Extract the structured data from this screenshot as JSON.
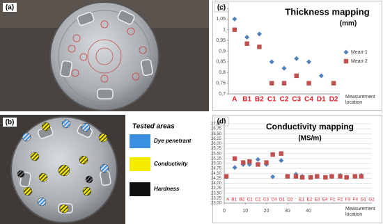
{
  "panels": {
    "a": "(a)",
    "b": "(b)",
    "c": "(c)",
    "d": "(d)"
  },
  "legend_b": {
    "title": "Tested areas",
    "items": [
      "Dye penetrant",
      "Conductivity",
      "Hardness"
    ]
  },
  "chart_data": [
    {
      "type": "scatter",
      "title": "Thickness mapping",
      "subtitle": "(mm)",
      "x_label": "Measurement location",
      "categories": [
        "A",
        "B1",
        "B2",
        "C1",
        "C2",
        "C3",
        "C4",
        "D1",
        "D2"
      ],
      "category_color": "#e0202a",
      "series": [
        {
          "name": "Mean-1",
          "color": "#4f81bd",
          "marker": "diamond",
          "values": [
            1.05,
            0.965,
            0.98,
            0.85,
            0.82,
            0.865,
            0.85,
            0.785,
            null
          ]
        },
        {
          "name": "Mean-2",
          "color": "#c0504d",
          "marker": "square",
          "values": [
            1.0,
            0.935,
            0.92,
            0.75,
            0.75,
            0.785,
            0.75,
            null,
            0.75
          ]
        }
      ],
      "ylim": [
        0.7,
        1.1
      ],
      "yticks": [
        {
          "value": 0.7,
          "label": "0,7"
        },
        {
          "value": 0.75,
          "label": "0,75"
        },
        {
          "value": 0.8,
          "label": "0,8"
        },
        {
          "value": 0.85,
          "label": "0,85"
        },
        {
          "value": 0.9,
          "label": "0,9"
        },
        {
          "value": 0.95,
          "label": "0,95"
        },
        1,
        {
          "value": 1.05,
          "label": "1,05"
        },
        {
          "value": 1.1,
          "label": "1,1"
        }
      ],
      "grid": false,
      "legend": "right"
    },
    {
      "type": "scatter",
      "title": "Conductivity mapping",
      "subtitle": "(MS/m)",
      "x_label": "Measurement location",
      "annotation": "A  B1  B2  C1  C2  C3  C4  D1  D2     E1  E2  E3  E4  F1  F2  F3  F4  G1  G2",
      "category_color": "#e0202a",
      "x": [
        1,
        5,
        9,
        12,
        16,
        20,
        23,
        27,
        30,
        34,
        37,
        41,
        44,
        48,
        51,
        55,
        58,
        62,
        65
      ],
      "series": [
        {
          "color": "#4f81bd",
          "marker": "diamond",
          "values": [
            24.33,
            24.8,
            24.95,
            24.95,
            25.2,
            24.95,
            24.33,
            25.15,
            24.35,
            24.45,
            24.35,
            24.3,
            24.35,
            24.3,
            24.35,
            24.4,
            24.3,
            24.35,
            24.4
          ]
        },
        {
          "color": "#c0504d",
          "marker": "square",
          "values": [
            24.35,
            25.25,
            25.05,
            25.1,
            24.95,
            25.05,
            25.45,
            25.5,
            24.35,
            24.35,
            24.3,
            24.3,
            24.35,
            24.3,
            24.35,
            24.35,
            24.3,
            24.35,
            24.35
          ]
        }
      ],
      "xlim": [
        0,
        70
      ],
      "xticks": [
        0,
        10,
        20,
        30,
        40
      ],
      "ylim": [
        23,
        27
      ],
      "yticks": [
        {
          "value": 23,
          "label": "23,00"
        },
        {
          "value": 23.25,
          "label": "23,25"
        },
        {
          "value": 23.5,
          "label": "23,50"
        },
        {
          "value": 23.75,
          "label": "23,75"
        },
        {
          "value": 24,
          "label": "24,00"
        },
        {
          "value": 24.25,
          "label": "24,25"
        },
        {
          "value": 24.5,
          "label": "24,50"
        },
        {
          "value": 24.75,
          "label": "24,75"
        },
        {
          "value": 25,
          "label": "25,00"
        },
        {
          "value": 25.25,
          "label": "25,25"
        },
        {
          "value": 25.5,
          "label": "25,50"
        },
        {
          "value": 25.75,
          "label": "25,75"
        },
        {
          "value": 26,
          "label": "26,00"
        },
        {
          "value": 26.25,
          "label": "26,25"
        },
        {
          "value": 26.5,
          "label": "26,50"
        },
        {
          "value": 26.75,
          "label": "26,75"
        },
        {
          "value": 27,
          "label": "27,00"
        }
      ],
      "grid": true
    }
  ]
}
